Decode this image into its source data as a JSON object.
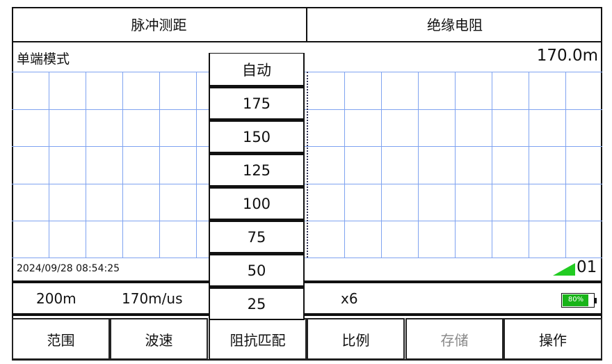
{
  "tabs": [
    {
      "label": "脉冲测距"
    },
    {
      "label": "绝缘电阻"
    }
  ],
  "header": {
    "mode": "单端模式",
    "distance": "170.0m"
  },
  "status": {
    "datetime": "2024/09/28 08:54:25",
    "channel": "01",
    "signal_color": "#22cc22"
  },
  "info": {
    "range": "200m",
    "velocity": "170m/us",
    "scale": "x6",
    "battery_percent": 80,
    "battery_label": "80%",
    "battery_color": "#18b418"
  },
  "dropdown": {
    "options": [
      "自动",
      "175",
      "150",
      "125",
      "100",
      "75",
      "50",
      "25"
    ]
  },
  "buttons": [
    {
      "label": "范围"
    },
    {
      "label": "波速"
    },
    {
      "label": "阻抗匹配"
    },
    {
      "label": "比例"
    },
    {
      "label": "存储",
      "disabled": true
    },
    {
      "label": "操作"
    }
  ],
  "colors": {
    "grid": "#7fa3f0"
  }
}
